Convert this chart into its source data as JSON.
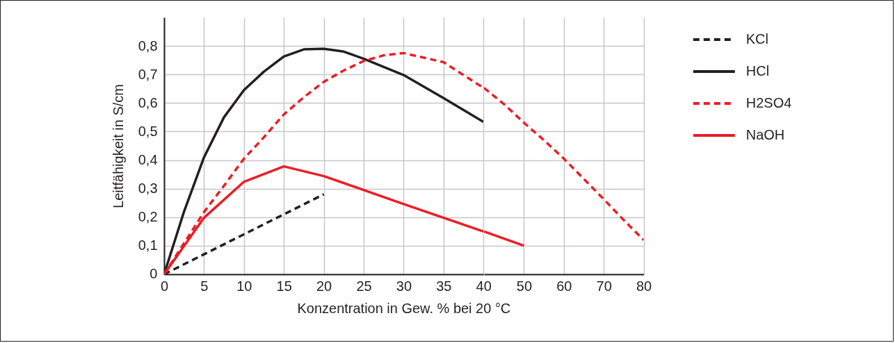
{
  "chart_data": [
    {
      "type": "line",
      "xlabel": "Konzentration in Gew. % bei 20 °C",
      "ylabel": "Leitfähigkeit in S/cm",
      "xlim": [
        0,
        40
      ],
      "xticks": [
        0,
        5,
        10,
        15,
        20,
        25,
        30,
        35,
        40
      ],
      "ylim": [
        0,
        0.9
      ],
      "yticks": [
        0,
        {
          "value": 0.1,
          "label": "0,1"
        },
        {
          "value": 0.2,
          "label": "0,2"
        },
        {
          "value": 0.3,
          "label": "0,3"
        },
        {
          "value": 0.4,
          "label": "0,4"
        },
        {
          "value": 0.5,
          "label": "0,5"
        },
        {
          "value": 0.6,
          "label": "0,6"
        },
        {
          "value": 0.7,
          "label": "0,7"
        },
        {
          "value": 0.8,
          "label": "0,8"
        }
      ],
      "grid": true,
      "legend": "top right",
      "marker": "none",
      "series": [
        {
          "name": "KCl",
          "color": "#231f20",
          "line_style": "dashed",
          "x": [
            0,
            10,
            20
          ],
          "values": [
            0,
            0.14,
            0.28
          ]
        },
        {
          "name": "HCl",
          "color": "#231f20",
          "line_style": "solid",
          "x": [
            0,
            2.5,
            5,
            7.5,
            10,
            12.5,
            15,
            17.5,
            20,
            22.5,
            25,
            30,
            35,
            40
          ],
          "values": [
            0,
            0.22,
            0.41,
            0.55,
            0.645,
            0.71,
            0.763,
            0.788,
            0.79,
            0.78,
            0.755,
            0.698,
            0.617,
            0.534
          ]
        },
        {
          "name": "H2SO4",
          "color": "#ed1c24",
          "line_style": "dashed",
          "x": [
            0,
            5,
            7.5,
            10,
            12.5,
            15,
            17.5,
            20,
            22.5,
            25,
            27.5,
            30,
            35,
            40
          ],
          "values": [
            0,
            0.218,
            0.31,
            0.405,
            0.48,
            0.56,
            0.62,
            0.674,
            0.714,
            0.747,
            0.767,
            0.775,
            0.743,
            0.653
          ]
        },
        {
          "name": "NaOH",
          "color": "#ed1c24",
          "line_style": "solid",
          "x": [
            0,
            5,
            10,
            15,
            20,
            30,
            40
          ],
          "values": [
            0,
            0.198,
            0.324,
            0.378,
            0.344,
            0.246,
            0.15
          ]
        }
      ]
    },
    {
      "type": "line",
      "xlim": [
        40,
        80
      ],
      "xticks": [
        50,
        60,
        70,
        80
      ],
      "ylim": [
        0,
        0.9
      ],
      "yticks": [
        0,
        0.1,
        0.2,
        0.3,
        0.4,
        0.5,
        0.6,
        0.7,
        0.8
      ],
      "grid": true,
      "marker": "none",
      "tick_labels": "x",
      "series": [
        {
          "color": "#ed1c24",
          "line_style": "dashed",
          "x": [
            40,
            45,
            50,
            55,
            60,
            65,
            70,
            75,
            80
          ],
          "values": [
            0.653,
            0.596,
            0.531,
            0.47,
            0.405,
            0.334,
            0.263,
            0.19,
            0.12
          ]
        },
        {
          "color": "#ed1c24",
          "line_style": "solid",
          "x": [
            40,
            50
          ],
          "values": [
            0.15,
            0.1
          ]
        }
      ]
    }
  ]
}
